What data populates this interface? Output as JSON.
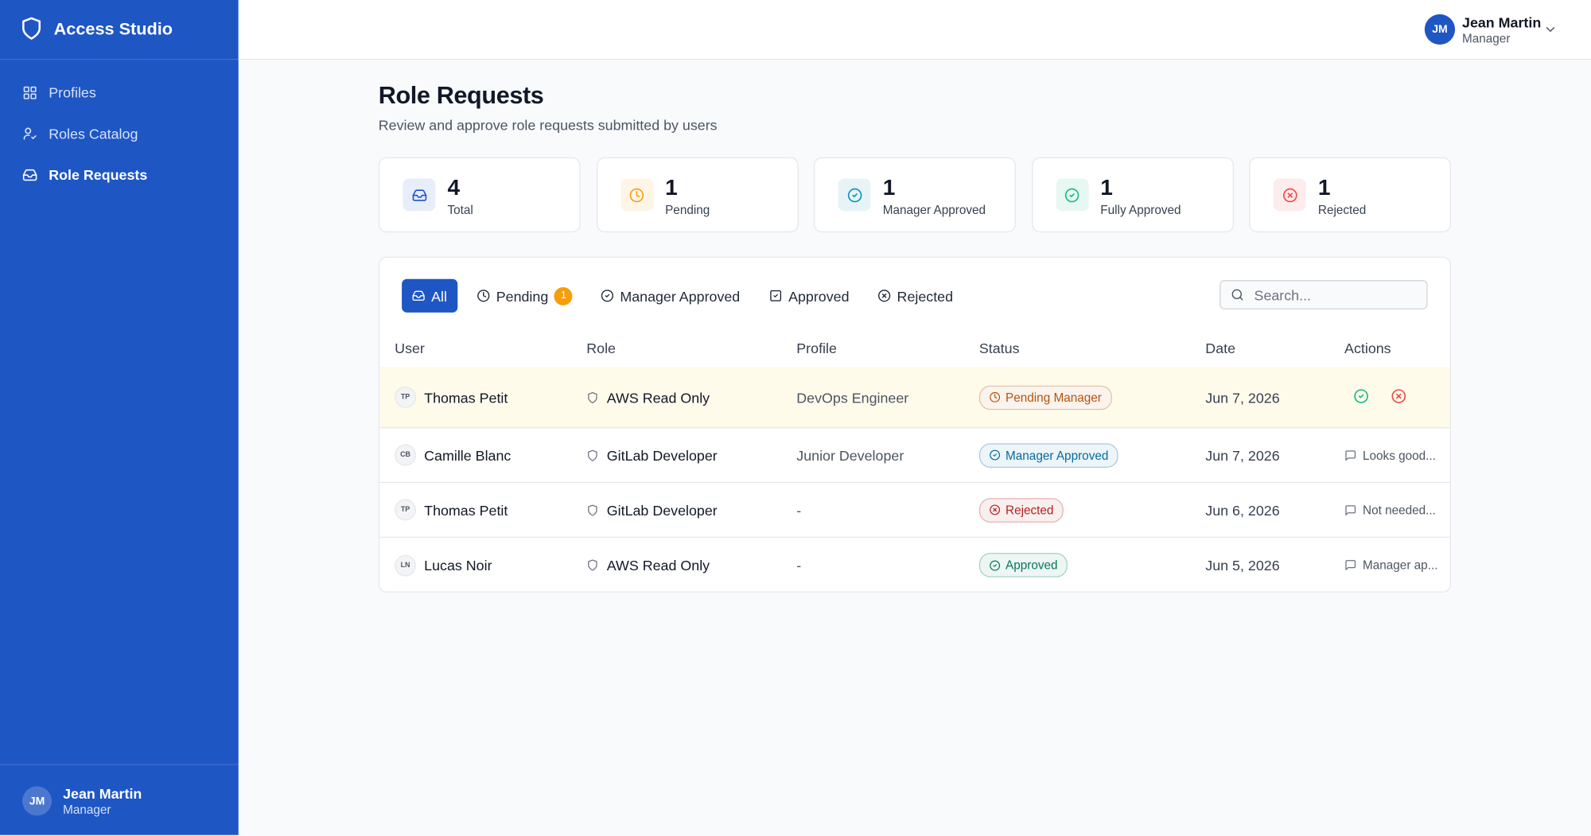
{
  "sidebar": {
    "brand": "Access Studio",
    "nav": [
      {
        "label": "Profiles"
      },
      {
        "label": "Roles Catalog"
      },
      {
        "label": "Role Requests",
        "active": true
      }
    ],
    "user": {
      "initials": "JM",
      "name": "Jean Martin",
      "role": "Manager"
    }
  },
  "header": {
    "user": {
      "initials": "JM",
      "name": "Jean Martin",
      "role": "Manager"
    }
  },
  "page": {
    "title": "Role Requests",
    "subtitle": "Review and approve role requests submitted by users"
  },
  "stats": [
    {
      "value": 4,
      "label": "Total",
      "color": "#1d4ed8"
    },
    {
      "value": 1,
      "label": "Pending",
      "color": "#f59e0b"
    },
    {
      "value": 1,
      "label": "Manager Approved",
      "color": "#0891b2"
    },
    {
      "value": 1,
      "label": "Fully Approved",
      "color": "#10b981"
    },
    {
      "value": 1,
      "label": "Rejected",
      "color": "#ef4444"
    }
  ],
  "tabs": [
    {
      "label": "All",
      "active": true
    },
    {
      "label": "Pending",
      "badge": 1
    },
    {
      "label": "Manager Approved"
    },
    {
      "label": "Approved"
    },
    {
      "label": "Rejected"
    }
  ],
  "search": {
    "placeholder": "Search..."
  },
  "table": {
    "columns": [
      "User",
      "Role",
      "Profile",
      "Status",
      "Date",
      "Actions"
    ],
    "rows": [
      {
        "initials": "TP",
        "user": "Thomas Petit",
        "role": "AWS Read Only",
        "profile": "DevOps Engineer",
        "status": "Pending Manager",
        "color": "#b45309",
        "date": "Jun 7, 2026"
      },
      {
        "initials": "CB",
        "user": "Camille Blanc",
        "role": "GitLab Developer",
        "profile": "Junior Developer",
        "status": "Manager Approved",
        "color": "#0369a1",
        "date": "Jun 7, 2026",
        "comment": "Looks good..."
      },
      {
        "initials": "TP",
        "user": "Thomas Petit",
        "role": "GitLab Developer",
        "profile": "-",
        "status": "Rejected",
        "color": "#b91c1c",
        "date": "Jun 6, 2026",
        "comment": "Not needed..."
      },
      {
        "initials": "LN",
        "user": "Lucas Noir",
        "role": "AWS Read Only",
        "profile": "-",
        "status": "Approved",
        "color": "#047857",
        "date": "Jun 5, 2026",
        "comment": "Manager ap..."
      }
    ]
  }
}
